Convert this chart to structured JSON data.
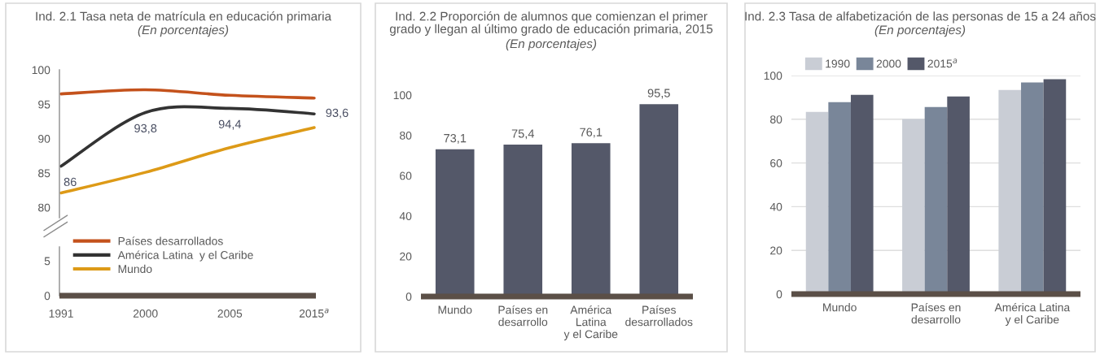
{
  "chart_data": [
    {
      "type": "line",
      "title": "Ind. 2.1 Tasa neta de matrícula en educación primaria",
      "subtitle": "(En porcentajes)",
      "ylim": [
        78.5,
        100
      ],
      "yticks": [
        80,
        85,
        90,
        95,
        100
      ],
      "tick_labels": "y",
      "grid": false,
      "legend": "bottom left",
      "marker": "none",
      "line_style": "solid",
      "series": [
        {
          "name": "Países desarrollados",
          "color": "#c4521c",
          "values": [
            96.5,
            97.1,
            96.3,
            95.9
          ]
        },
        {
          "name": "América Latina  y el Caribe",
          "color": "#333333",
          "values": [
            86,
            93.8,
            94.4,
            93.6
          ],
          "value_labels": [
            "86",
            "93,8",
            "94,4",
            "93,6"
          ]
        },
        {
          "name": "Mundo",
          "color": "#dd9a17",
          "values": [
            82.1,
            85.1,
            88.7,
            91.6
          ]
        }
      ]
    },
    {
      "type": "line",
      "categories": [
        "1991",
        "2000",
        "2005",
        "2015$^{a}$"
      ],
      "ylim": [
        0,
        7
      ],
      "yticks": [
        0,
        5
      ],
      "grid": false
    },
    {
      "type": "bar",
      "title": "Ind. 2.2 Proporción de alumnos que comienzan el primer\ngrado y llegan al último grado de educación primaria, 2015",
      "subtitle": "(En porcentajes)",
      "categories": [
        "Mundo",
        "Países en\ndesarrollo",
        "América\nLatina\ny el Caribe",
        "Países\ndesarrollados"
      ],
      "ylim": [
        0,
        100
      ],
      "yticks": [
        0,
        20,
        40,
        60,
        80,
        100
      ],
      "grid": false,
      "legend": false,
      "series": [
        {
          "color": "#545869",
          "values": [
            73.1,
            75.4,
            76.1,
            95.5
          ],
          "value_labels": [
            "73,1",
            "75,4",
            "76,1",
            "95,5"
          ]
        }
      ]
    },
    {
      "type": "bar",
      "title": "Ind. 2.3 Tasa de alfabetización de las personas de 15 a 24 años",
      "subtitle": "(En porcentajes)",
      "categories": [
        "Mundo",
        "Países en\ndesarrollo",
        "América Latina\ny el Caribe"
      ],
      "ylim": [
        0,
        100
      ],
      "yticks": [
        0,
        20,
        40,
        60,
        80,
        100
      ],
      "grid": "y",
      "legend": "top left",
      "series": [
        {
          "name": "1990",
          "color": "#c9cdd5",
          "values": [
            83.4,
            80.1,
            93.4
          ]
        },
        {
          "name": "2000",
          "color": "#798699",
          "values": [
            87.8,
            85.6,
            96.8
          ]
        },
        {
          "name": "2015$^{a}$",
          "color": "#545869",
          "values": [
            91.2,
            90.4,
            98.3
          ]
        }
      ]
    }
  ]
}
